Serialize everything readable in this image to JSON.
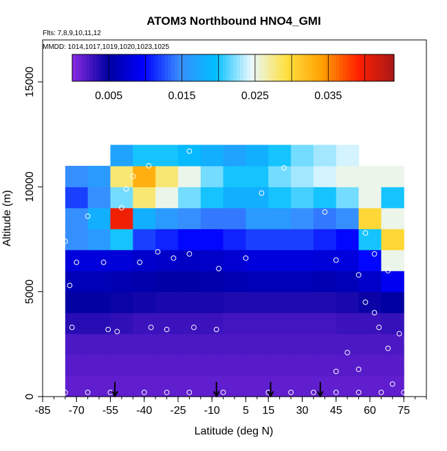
{
  "chart_data": {
    "type": "heatmap",
    "title": "ATOM3 Northbound HNO4_GMI",
    "flights_label": "Flts: 7,8,9,10,11,12",
    "dates_label": "MMDD: 1014,1017,1019,1020,1023,1025",
    "xlabel": "Latitude (deg N)",
    "ylabel": "Altitude (m)",
    "xlim": [
      -85,
      85
    ],
    "ylim": [
      0,
      17000
    ],
    "x_ticks": [
      -85,
      -70,
      -55,
      -40,
      -25,
      -10,
      5,
      15,
      30,
      45,
      60,
      75
    ],
    "y_ticks": [
      0,
      5000,
      10000,
      15000
    ],
    "colorbar": {
      "range": [
        0,
        0.044
      ],
      "tick_values": [
        0.005,
        0.015,
        0.025,
        0.035
      ],
      "tick_labels": [
        "0.005",
        "0.015",
        "0.025",
        "0.035"
      ],
      "colors": [
        "#8a2be2",
        "#0000a0",
        "#0000ff",
        "#3a8cff",
        "#00bfff",
        "#e8f8ff",
        "#ffe040",
        "#ffa000",
        "#ff2000",
        "#a81818"
      ]
    },
    "arrows_lat": [
      -53,
      -8,
      16,
      38
    ],
    "samples": [
      [
        -75,
        200
      ],
      [
        -65,
        200
      ],
      [
        -55,
        200
      ],
      [
        -40,
        200
      ],
      [
        -30,
        200
      ],
      [
        -20,
        200
      ],
      [
        -5,
        200
      ],
      [
        15,
        200
      ],
      [
        25,
        200
      ],
      [
        35,
        200
      ],
      [
        -73,
        5300
      ],
      [
        -72,
        3300
      ],
      [
        -56,
        3200
      ],
      [
        -52,
        3100
      ],
      [
        -37,
        3300
      ],
      [
        -30,
        3200
      ],
      [
        -18,
        3300
      ],
      [
        -8,
        3200
      ],
      [
        -75,
        7400
      ],
      [
        -70,
        6400
      ],
      [
        -58,
        6400
      ],
      [
        -42,
        6400
      ],
      [
        -34,
        6900
      ],
      [
        -27,
        6600
      ],
      [
        -20,
        6800
      ],
      [
        -7,
        6100
      ],
      [
        5,
        6600
      ],
      [
        -65,
        8600
      ],
      [
        -50,
        9000
      ],
      [
        -48,
        9900
      ],
      [
        -45,
        10500
      ],
      [
        -38,
        11000
      ],
      [
        -20,
        11700
      ],
      [
        12,
        9700
      ],
      [
        22,
        10900
      ],
      [
        40,
        8800
      ],
      [
        45,
        6500
      ],
      [
        55,
        5800
      ],
      [
        58,
        4500
      ],
      [
        62,
        4000
      ],
      [
        64,
        3300
      ],
      [
        68,
        2300
      ],
      [
        55,
        1300
      ],
      [
        50,
        2100
      ],
      [
        70,
        600
      ],
      [
        65,
        200
      ],
      [
        55,
        200
      ],
      [
        45,
        200
      ],
      [
        58,
        7800
      ],
      [
        62,
        6800
      ],
      [
        68,
        6000
      ],
      [
        73,
        3000
      ],
      [
        75,
        200
      ],
      [
        45,
        1200
      ]
    ],
    "grid": {
      "alt_edges": [
        0,
        1000,
        2000,
        3000,
        4000,
        5000,
        6000,
        7000,
        8000,
        9000,
        10000,
        11000,
        12000
      ],
      "lat_edges": [
        -75,
        -65,
        -55,
        -45,
        -35,
        -25,
        -15,
        -5,
        5,
        15,
        25,
        35,
        45,
        55,
        65,
        75
      ],
      "values": [
        [
          0.0015,
          0.0015,
          0.0015,
          0.0015,
          0.0015,
          0.0015,
          0.0015,
          0.0015,
          0.0015,
          0.0015,
          0.0015,
          0.0015,
          0.0015,
          0.0015,
          0.0015
        ],
        [
          0.0018,
          0.0018,
          0.0018,
          0.0018,
          0.0018,
          0.0018,
          0.0018,
          0.0018,
          0.0018,
          0.0018,
          0.0018,
          0.0018,
          0.0018,
          0.0018,
          0.0018
        ],
        [
          0.0022,
          0.0022,
          0.0022,
          0.0022,
          0.0022,
          0.0022,
          0.0022,
          0.0022,
          0.0022,
          0.0022,
          0.0022,
          0.0022,
          0.0022,
          0.0022,
          0.0022
        ],
        [
          0.0035,
          0.0035,
          0.0032,
          0.0028,
          0.0028,
          0.0028,
          0.0028,
          0.0025,
          0.0025,
          0.0025,
          0.0025,
          0.0025,
          0.0028,
          0.0028,
          0.003
        ],
        [
          0.0048,
          0.0048,
          0.0045,
          0.0042,
          0.004,
          0.004,
          0.004,
          0.0038,
          0.0038,
          0.0038,
          0.0038,
          0.0038,
          0.004,
          0.0045,
          0.005
        ],
        [
          0.006,
          0.006,
          0.0058,
          0.0055,
          0.0052,
          0.0052,
          0.0055,
          0.0058,
          0.006,
          0.006,
          0.006,
          0.0058,
          0.006,
          0.007,
          0.009
        ],
        [
          0.008,
          0.008,
          0.0078,
          0.0072,
          0.007,
          0.0068,
          0.007,
          0.0075,
          0.008,
          0.008,
          0.008,
          0.0078,
          0.008,
          0.01,
          0.025
        ],
        [
          0.015,
          0.016,
          0.02,
          0.012,
          0.011,
          0.01,
          0.01,
          0.011,
          0.012,
          0.012,
          0.012,
          0.011,
          0.01,
          0.02,
          0.03
        ],
        [
          0.015,
          0.018,
          0.04,
          0.018,
          0.016,
          0.015,
          0.014,
          0.014,
          0.016,
          0.016,
          0.015,
          0.014,
          0.015,
          0.03,
          0.025
        ],
        [
          0.012,
          0.015,
          0.022,
          0.028,
          0.025,
          0.022,
          0.02,
          0.018,
          0.018,
          0.02,
          0.021,
          0.02,
          0.022,
          0.025,
          0.02
        ],
        [
          0.015,
          0.016,
          0.028,
          0.033,
          0.028,
          0.025,
          0.022,
          0.02,
          0.02,
          0.022,
          0.023,
          0.024,
          0.025,
          0.025,
          0.025
        ],
        [
          null,
          null,
          0.017,
          0.02,
          0.02,
          0.019,
          0.018,
          0.017,
          0.018,
          0.02,
          0.022,
          0.023,
          0.024,
          null,
          null
        ]
      ]
    }
  }
}
